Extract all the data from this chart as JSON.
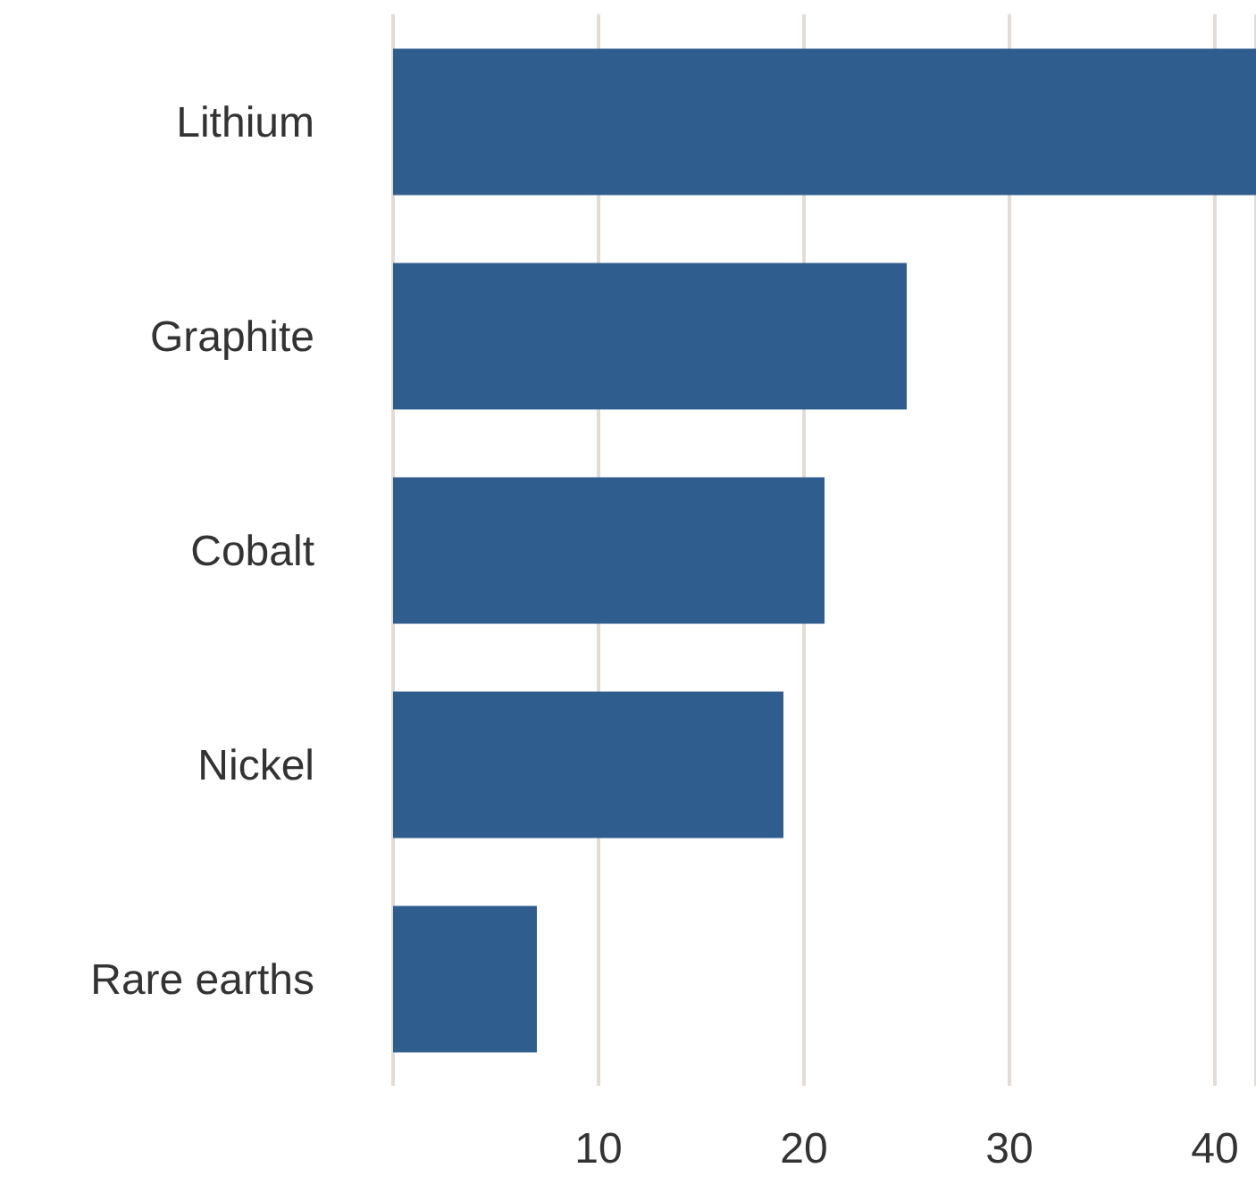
{
  "chart_data": {
    "type": "bar",
    "orientation": "horizontal",
    "categories": [
      "Lithium",
      "Graphite",
      "Cobalt",
      "Nickel",
      "Rare earths"
    ],
    "values": [
      42,
      25,
      21,
      19,
      7
    ],
    "color": "#2f5e8e",
    "xlim": [
      0,
      42
    ],
    "xticks": [
      10,
      20,
      30,
      40
    ],
    "grid": "x"
  }
}
